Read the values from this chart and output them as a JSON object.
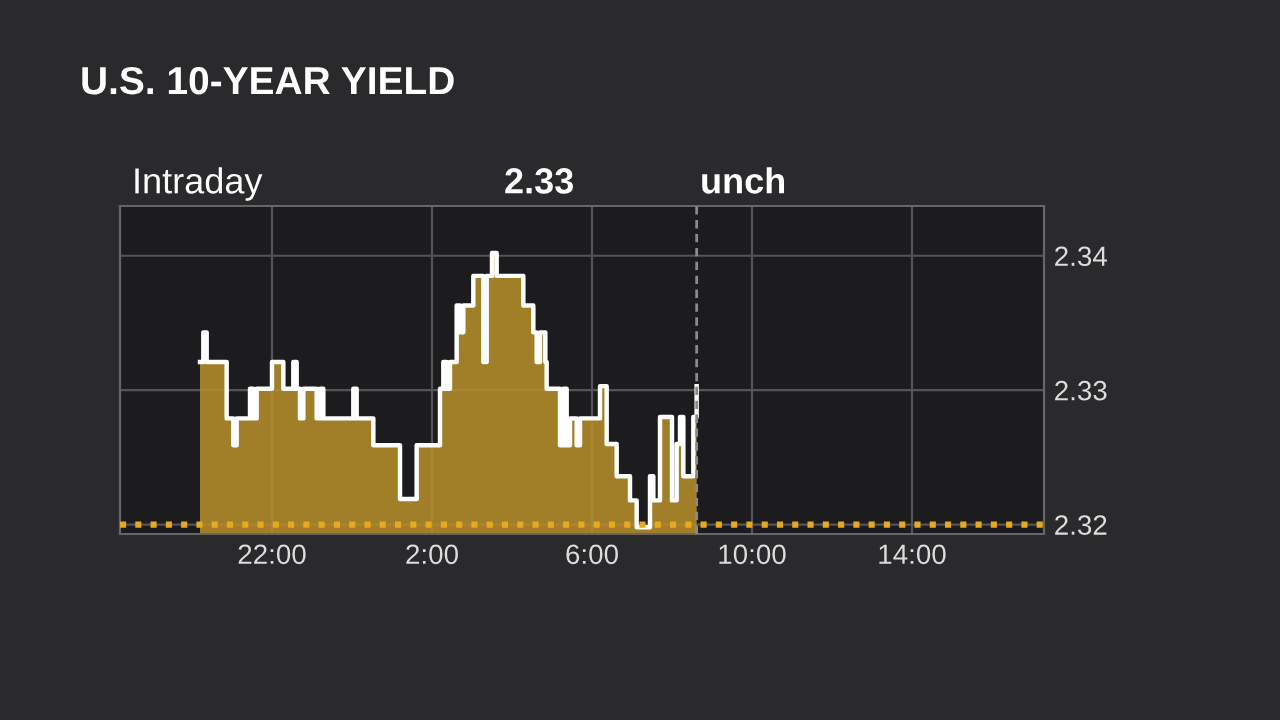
{
  "chart_data": {
    "type": "area",
    "title": "U.S. 10-YEAR YIELD",
    "annotations": [
      "Intraday",
      "2.33",
      "unch"
    ],
    "series": [
      {
        "color": "#b8902a",
        "x": [
          "2000-01-01T20:12",
          "2000-01-01T20:17",
          "2000-01-01T20:22",
          "2000-01-01T20:42",
          "2000-01-01T20:52",
          "2000-01-01T21:02",
          "2000-01-01T21:07",
          "2000-01-01T21:22",
          "2000-01-01T21:27",
          "2000-01-01T21:32",
          "2000-01-01T21:37",
          "2000-01-01T21:52",
          "2000-01-01T22:00",
          "2000-01-01T22:12",
          "2000-01-01T22:17",
          "2000-01-01T22:27",
          "2000-01-01T22:32",
          "2000-01-01T22:37",
          "2000-01-01T22:42",
          "2000-01-01T22:47",
          "2000-01-01T23:02",
          "2000-01-01T23:07",
          "2000-01-01T23:12",
          "2000-01-01T23:17",
          "2000-01-01T23:57",
          "2000-01-02T00:02",
          "2000-01-02T00:07",
          "2000-01-02T00:27",
          "2000-01-02T00:32",
          "2000-01-02T01:02",
          "2000-01-02T01:12",
          "2000-01-02T01:32",
          "2000-01-02T01:37",
          "2000-01-02T02:02",
          "2000-01-02T02:12",
          "2000-01-02T02:17",
          "2000-01-02T02:22",
          "2000-01-02T02:27",
          "2000-01-02T02:37",
          "2000-01-02T02:42",
          "2000-01-02T02:47",
          "2000-01-02T02:57",
          "2000-01-02T03:02",
          "2000-01-02T03:12",
          "2000-01-02T03:17",
          "2000-01-02T03:22",
          "2000-01-02T03:30",
          "2000-01-02T03:37",
          "2000-01-02T04:12",
          "2000-01-02T04:17",
          "2000-01-02T04:27",
          "2000-01-02T04:32",
          "2000-01-02T04:37",
          "2000-01-02T04:42",
          "2000-01-02T04:50",
          "2000-01-02T04:52",
          "2000-01-02T05:07",
          "2000-01-02T05:12",
          "2000-01-02T05:17",
          "2000-01-02T05:22",
          "2000-01-02T05:27",
          "2000-01-02T05:37",
          "2000-01-02T05:42",
          "2000-01-02T06:02",
          "2000-01-02T06:12",
          "2000-01-02T06:22",
          "2000-01-02T06:32",
          "2000-01-02T06:37",
          "2000-01-02T06:52",
          "2000-01-02T06:57",
          "2000-01-02T07:07",
          "2000-01-02T07:17",
          "2000-01-02T07:27",
          "2000-01-02T07:32",
          "2000-01-02T07:42",
          "2000-01-02T07:57",
          "2000-01-02T08:00",
          "2000-01-02T08:07",
          "2000-01-02T08:12",
          "2000-01-02T08:17",
          "2000-01-02T08:27",
          "2000-01-02T08:32",
          "2000-01-02T08:37"
        ],
        "values": [
          2.3321,
          2.3343,
          2.3321,
          2.3321,
          2.3279,
          2.3259,
          2.3279,
          2.3279,
          2.3301,
          2.3279,
          2.3301,
          2.3301,
          2.3321,
          2.3321,
          2.3301,
          2.3301,
          2.3321,
          2.3301,
          2.3279,
          2.3301,
          2.3301,
          2.3279,
          2.3301,
          2.3279,
          2.3279,
          2.3301,
          2.3279,
          2.3279,
          2.3259,
          2.3259,
          2.3219,
          2.3219,
          2.3259,
          2.3259,
          2.3301,
          2.3321,
          2.3301,
          2.3321,
          2.3363,
          2.3343,
          2.3363,
          2.3363,
          2.3385,
          2.3385,
          2.3321,
          2.3385,
          2.3402,
          2.3385,
          2.3385,
          2.3363,
          2.3363,
          2.3343,
          2.3321,
          2.3343,
          2.3321,
          2.3301,
          2.3301,
          2.3259,
          2.3301,
          2.3259,
          2.3279,
          2.3259,
          2.3279,
          2.3279,
          2.3303,
          2.326,
          2.326,
          2.3236,
          2.3236,
          2.3218,
          2.3198,
          2.3198,
          2.3236,
          2.3218,
          2.328,
          2.328,
          2.3218,
          2.326,
          2.328,
          2.3236,
          2.3236,
          2.328,
          2.3303
        ]
      }
    ],
    "xlim": [
      "2000-01-01T18:12",
      "2000-01-02T17:18"
    ],
    "ylim": [
      2.3193,
      2.3437
    ],
    "xticks": [
      {
        "value": "2000-01-01T22:00",
        "label": "22:00"
      },
      {
        "value": "2000-01-02T02:00",
        "label": "2:00"
      },
      {
        "value": "2000-01-02T06:00",
        "label": "6:00"
      },
      {
        "value": "2000-01-02T10:00",
        "label": "10:00"
      },
      {
        "value": "2000-01-02T14:00",
        "label": "14:00"
      }
    ],
    "yticks": [
      2.32,
      2.33,
      2.34
    ],
    "ref_lines": [
      {
        "axis": "y",
        "value": 2.32,
        "label": null,
        "color": "#e8a820",
        "line_style": "dotted"
      },
      {
        "axis": "x",
        "value": "2000-01-02T08:37",
        "label": null,
        "color": "#8a8a8a",
        "line_style": "dashed"
      }
    ],
    "grid": true,
    "legend": false
  }
}
